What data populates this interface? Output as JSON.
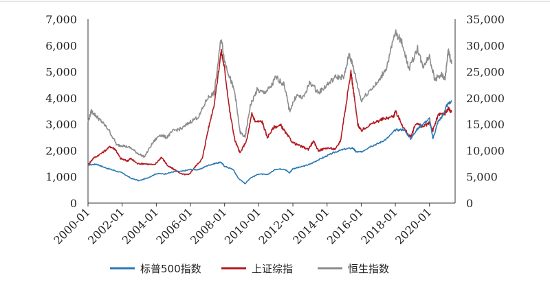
{
  "chart_data": {
    "type": "line",
    "xlabel": "",
    "ylabel": "",
    "x_ticks": [
      "2000-01",
      "2002-01",
      "2004-01",
      "2006-01",
      "2008-01",
      "2010-01",
      "2012-01",
      "2014-01",
      "2016-01",
      "2018-01",
      "2020-01"
    ],
    "y_left_ticks": [
      "0",
      "1,000",
      "2,000",
      "3,000",
      "4,000",
      "5,000",
      "6,000",
      "7,000"
    ],
    "y_right_ticks": [
      "0",
      "5,000",
      "10,000",
      "15,000",
      "20,000",
      "25,000",
      "30,000",
      "35,000"
    ],
    "y_left_range": [
      0,
      7000
    ],
    "y_right_range": [
      0,
      35000
    ],
    "x_range": [
      2000.0,
      2021.5
    ],
    "grid": false,
    "legend_position": "bottom",
    "series": [
      {
        "name": "标普500指数",
        "axis": "left",
        "color": "#2a79b4",
        "points": [
          [
            2000.0,
            1450
          ],
          [
            2000.5,
            1480
          ],
          [
            2001.0,
            1350
          ],
          [
            2001.5,
            1250
          ],
          [
            2002.0,
            1150
          ],
          [
            2002.5,
            950
          ],
          [
            2003.0,
            850
          ],
          [
            2003.5,
            960
          ],
          [
            2004.0,
            1120
          ],
          [
            2004.5,
            1110
          ],
          [
            2005.0,
            1190
          ],
          [
            2005.5,
            1210
          ],
          [
            2006.0,
            1280
          ],
          [
            2006.5,
            1270
          ],
          [
            2007.0,
            1430
          ],
          [
            2007.5,
            1520
          ],
          [
            2007.8,
            1550
          ],
          [
            2008.0,
            1400
          ],
          [
            2008.5,
            1280
          ],
          [
            2008.8,
            950
          ],
          [
            2009.2,
            740
          ],
          [
            2009.5,
            950
          ],
          [
            2010.0,
            1110
          ],
          [
            2010.5,
            1080
          ],
          [
            2011.0,
            1290
          ],
          [
            2011.5,
            1300
          ],
          [
            2011.8,
            1150
          ],
          [
            2012.0,
            1310
          ],
          [
            2012.5,
            1380
          ],
          [
            2013.0,
            1480
          ],
          [
            2013.5,
            1650
          ],
          [
            2014.0,
            1800
          ],
          [
            2014.5,
            1950
          ],
          [
            2015.0,
            2050
          ],
          [
            2015.5,
            2100
          ],
          [
            2015.7,
            1950
          ],
          [
            2016.0,
            1940
          ],
          [
            2016.5,
            2150
          ],
          [
            2017.0,
            2270
          ],
          [
            2017.5,
            2450
          ],
          [
            2018.0,
            2780
          ],
          [
            2018.5,
            2800
          ],
          [
            2018.9,
            2450
          ],
          [
            2019.2,
            2750
          ],
          [
            2019.5,
            2950
          ],
          [
            2020.0,
            3220
          ],
          [
            2020.2,
            2450
          ],
          [
            2020.5,
            3100
          ],
          [
            2020.8,
            3350
          ],
          [
            2021.0,
            3700
          ],
          [
            2021.3,
            3900
          ]
        ]
      },
      {
        "name": "上证综指",
        "axis": "left",
        "color": "#b3191e",
        "points": [
          [
            2000.0,
            1450
          ],
          [
            2000.3,
            1700
          ],
          [
            2000.8,
            1900
          ],
          [
            2001.3,
            2150
          ],
          [
            2001.6,
            2050
          ],
          [
            2001.9,
            1700
          ],
          [
            2002.3,
            1600
          ],
          [
            2002.5,
            1700
          ],
          [
            2002.9,
            1500
          ],
          [
            2003.3,
            1500
          ],
          [
            2003.9,
            1450
          ],
          [
            2004.3,
            1750
          ],
          [
            2004.7,
            1400
          ],
          [
            2005.0,
            1300
          ],
          [
            2005.5,
            1100
          ],
          [
            2005.9,
            1080
          ],
          [
            2006.3,
            1400
          ],
          [
            2006.7,
            1700
          ],
          [
            2007.0,
            2700
          ],
          [
            2007.4,
            3800
          ],
          [
            2007.8,
            5800
          ],
          [
            2008.0,
            5100
          ],
          [
            2008.3,
            3500
          ],
          [
            2008.6,
            2400
          ],
          [
            2008.9,
            1900
          ],
          [
            2009.3,
            2400
          ],
          [
            2009.6,
            3400
          ],
          [
            2009.8,
            3100
          ],
          [
            2010.2,
            3100
          ],
          [
            2010.5,
            2500
          ],
          [
            2010.9,
            2900
          ],
          [
            2011.3,
            2950
          ],
          [
            2011.6,
            2650
          ],
          [
            2012.0,
            2300
          ],
          [
            2012.5,
            2150
          ],
          [
            2012.9,
            2050
          ],
          [
            2013.2,
            2350
          ],
          [
            2013.5,
            2000
          ],
          [
            2014.0,
            2100
          ],
          [
            2014.5,
            2050
          ],
          [
            2014.8,
            2400
          ],
          [
            2015.0,
            3300
          ],
          [
            2015.4,
            5000
          ],
          [
            2015.6,
            4000
          ],
          [
            2015.8,
            3000
          ],
          [
            2016.0,
            2750
          ],
          [
            2016.3,
            2900
          ],
          [
            2016.9,
            3100
          ],
          [
            2017.3,
            3200
          ],
          [
            2017.9,
            3300
          ],
          [
            2018.0,
            3500
          ],
          [
            2018.5,
            2850
          ],
          [
            2018.9,
            2500
          ],
          [
            2019.2,
            3050
          ],
          [
            2019.6,
            2900
          ],
          [
            2020.0,
            3050
          ],
          [
            2020.2,
            2750
          ],
          [
            2020.5,
            3350
          ],
          [
            2020.9,
            3400
          ],
          [
            2021.1,
            3600
          ],
          [
            2021.3,
            3450
          ]
        ]
      },
      {
        "name": "恒生指数",
        "axis": "right",
        "color": "#8c8c8c",
        "points": [
          [
            2000.0,
            15500
          ],
          [
            2000.2,
            17500
          ],
          [
            2000.5,
            16500
          ],
          [
            2000.8,
            15500
          ],
          [
            2001.2,
            14000
          ],
          [
            2001.7,
            11000
          ],
          [
            2002.0,
            11000
          ],
          [
            2002.5,
            10500
          ],
          [
            2002.9,
            9500
          ],
          [
            2003.3,
            8800
          ],
          [
            2003.8,
            11500
          ],
          [
            2004.2,
            13000
          ],
          [
            2004.6,
            12500
          ],
          [
            2005.0,
            13800
          ],
          [
            2005.5,
            14200
          ],
          [
            2006.0,
            15500
          ],
          [
            2006.5,
            16500
          ],
          [
            2007.0,
            20000
          ],
          [
            2007.4,
            21000
          ],
          [
            2007.8,
            31500
          ],
          [
            2008.0,
            27000
          ],
          [
            2008.3,
            24000
          ],
          [
            2008.6,
            21000
          ],
          [
            2008.9,
            13500
          ],
          [
            2009.2,
            12500
          ],
          [
            2009.5,
            18500
          ],
          [
            2009.9,
            21500
          ],
          [
            2010.3,
            21000
          ],
          [
            2010.7,
            22000
          ],
          [
            2011.0,
            24000
          ],
          [
            2011.5,
            22500
          ],
          [
            2011.8,
            17500
          ],
          [
            2012.2,
            20500
          ],
          [
            2012.6,
            20000
          ],
          [
            2013.0,
            23000
          ],
          [
            2013.5,
            21000
          ],
          [
            2014.0,
            22500
          ],
          [
            2014.5,
            24000
          ],
          [
            2015.0,
            24000
          ],
          [
            2015.3,
            28500
          ],
          [
            2015.6,
            25000
          ],
          [
            2016.0,
            19500
          ],
          [
            2016.5,
            21500
          ],
          [
            2017.0,
            23000
          ],
          [
            2017.5,
            26000
          ],
          [
            2018.0,
            32500
          ],
          [
            2018.4,
            30500
          ],
          [
            2018.8,
            25500
          ],
          [
            2019.3,
            29500
          ],
          [
            2019.6,
            26000
          ],
          [
            2020.0,
            28000
          ],
          [
            2020.3,
            23500
          ],
          [
            2020.7,
            24500
          ],
          [
            2020.9,
            23500
          ],
          [
            2021.1,
            29000
          ],
          [
            2021.3,
            26500
          ]
        ]
      }
    ]
  },
  "legend": {
    "items": [
      {
        "label": "标普500指数",
        "color": "#2a79b4"
      },
      {
        "label": "上证综指",
        "color": "#b3191e"
      },
      {
        "label": "恒生指数",
        "color": "#8c8c8c"
      }
    ]
  }
}
